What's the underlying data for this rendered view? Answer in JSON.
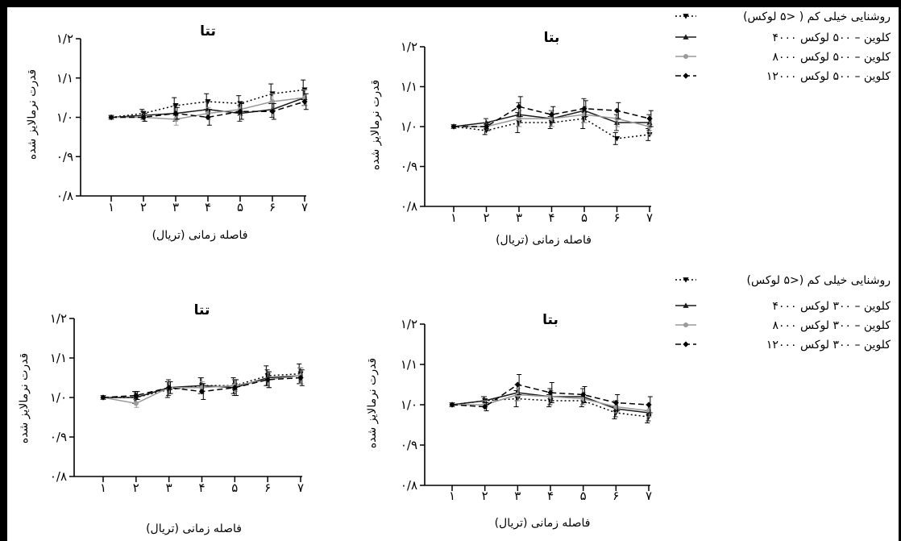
{
  "legends": [
    {
      "entries": [
        {
          "series": "low",
          "label": "روشنایی خیلی کم ( <۵ لوکس)"
        },
        {
          "series": "k4000",
          "label": "۴۰۰۰ کلوین – ۵۰۰ لوکس"
        },
        {
          "series": "k8000",
          "label": "۸۰۰۰ کلوین – ۵۰۰ لوکس"
        },
        {
          "series": "k12000",
          "label": "۱۲۰۰۰ کلوین – ۵۰۰ لوکس"
        }
      ]
    },
    {
      "entries": [
        {
          "series": "low",
          "label": "روشنایی خیلی کم (<۵ لوکس)"
        },
        {
          "series": "k4000",
          "label": "۴۰۰۰ کلوین – ۳۰۰ لوکس"
        },
        {
          "series": "k8000",
          "label": "۸۰۰۰ کلوین – ۳۰۰ لوکس"
        },
        {
          "series": "k12000",
          "label": "۱۲۰۰۰ کلوین – ۳۰۰ لوکس"
        }
      ]
    }
  ],
  "series_styles": {
    "low": {
      "color": "#000000",
      "dash": "2,3",
      "marker": "triangle-down"
    },
    "k4000": {
      "color": "#1a1a1a",
      "dash": "",
      "marker": "triangle-up"
    },
    "k8000": {
      "color": "#9a9a9a",
      "dash": "",
      "marker": "circle"
    },
    "k12000": {
      "color": "#000000",
      "dash": "7,4",
      "marker": "diamond"
    }
  },
  "chart_data": [
    {
      "type": "line",
      "title": "تتا",
      "xlabel": "فاصله زمانی (تریال)",
      "ylabel": "قدرت نرمالایز شده",
      "x": [
        1,
        2,
        3,
        4,
        5,
        6,
        7
      ],
      "x_tick_labels": [
        "۱",
        "۲",
        "۳",
        "۴",
        "۵",
        "۶",
        "۷"
      ],
      "y_tick_values": [
        0.8,
        0.9,
        1.0,
        1.1,
        1.2
      ],
      "y_tick_labels": [
        "۰/۸",
        "۰/۹",
        "۱/۰",
        "۱/۱",
        "۱/۲"
      ],
      "ylim": [
        0.8,
        1.2
      ],
      "series": [
        {
          "key": "low",
          "values": [
            1.0,
            1.01,
            1.03,
            1.04,
            1.035,
            1.06,
            1.07
          ],
          "err": [
            0,
            0.01,
            0.02,
            0.02,
            0.02,
            0.025,
            0.025
          ]
        },
        {
          "key": "k4000",
          "values": [
            1.0,
            1.005,
            1.01,
            1.02,
            1.01,
            1.02,
            1.05
          ],
          "err": [
            0,
            0.01,
            0.02,
            0.02,
            0.02,
            0.02,
            0.02
          ]
        },
        {
          "key": "k8000",
          "values": [
            1.0,
            1.0,
            0.995,
            1.01,
            1.02,
            1.04,
            1.05
          ],
          "err": [
            0,
            0.01,
            0.015,
            0.015,
            0.015,
            0.02,
            0.02
          ]
        },
        {
          "key": "k12000",
          "values": [
            1.0,
            1.0,
            1.01,
            1.0,
            1.015,
            1.015,
            1.04
          ],
          "err": [
            0,
            0.01,
            0.015,
            0.02,
            0.02,
            0.02,
            0.02
          ]
        }
      ]
    },
    {
      "type": "line",
      "title": "بتا",
      "xlabel": "فاصله زمانی (تریال)",
      "ylabel": "قدرت نرمالایز شده",
      "x": [
        1,
        2,
        3,
        4,
        5,
        6,
        7
      ],
      "x_tick_labels": [
        "۱",
        "۲",
        "۳",
        "۴",
        "۵",
        "۶",
        "۷"
      ],
      "y_tick_values": [
        0.8,
        0.9,
        1.0,
        1.1,
        1.2
      ],
      "y_tick_labels": [
        "۰/۸",
        "۰/۹",
        "۱/۰",
        "۱/۱",
        "۱/۲"
      ],
      "ylim": [
        0.8,
        1.2
      ],
      "series": [
        {
          "key": "low",
          "values": [
            1.0,
            0.99,
            1.01,
            1.01,
            1.02,
            0.97,
            0.98
          ],
          "err": [
            0,
            0.01,
            0.025,
            0.015,
            0.025,
            0.015,
            0.015
          ]
        },
        {
          "key": "k4000",
          "values": [
            1.0,
            1.01,
            1.03,
            1.02,
            1.04,
            1.01,
            1.01
          ],
          "err": [
            0,
            0.01,
            0.03,
            0.02,
            0.03,
            0.02,
            0.02
          ]
        },
        {
          "key": "k8000",
          "values": [
            1.0,
            1.0,
            1.02,
            1.02,
            1.03,
            1.02,
            1.0
          ],
          "err": [
            0,
            0.01,
            0.02,
            0.02,
            0.02,
            0.02,
            0.02
          ]
        },
        {
          "key": "k12000",
          "values": [
            1.0,
            1.0,
            1.05,
            1.03,
            1.045,
            1.04,
            1.02
          ],
          "err": [
            0,
            0.01,
            0.025,
            0.02,
            0.02,
            0.02,
            0.02
          ]
        }
      ]
    },
    {
      "type": "line",
      "title": "تتا",
      "xlabel": "فاصله زمانی (تریال)",
      "ylabel": "قدرت نرمالایز شده",
      "x": [
        1,
        2,
        3,
        4,
        5,
        6,
        7
      ],
      "x_tick_labels": [
        "۱",
        "۲",
        "۳",
        "۴",
        "۵",
        "۶",
        "۷"
      ],
      "y_tick_values": [
        0.8,
        0.9,
        1.0,
        1.1,
        1.2
      ],
      "y_tick_labels": [
        "۰/۸",
        "۰/۹",
        "۱/۰",
        "۱/۱",
        "۱/۲"
      ],
      "ylim": [
        0.8,
        1.2
      ],
      "series": [
        {
          "key": "low",
          "values": [
            1.0,
            1.0,
            1.02,
            1.03,
            1.03,
            1.055,
            1.06
          ],
          "err": [
            0,
            0.015,
            0.02,
            0.02,
            0.02,
            0.025,
            0.025
          ]
        },
        {
          "key": "k4000",
          "values": [
            1.0,
            1.0,
            1.025,
            1.03,
            1.025,
            1.05,
            1.055
          ],
          "err": [
            0,
            0.015,
            0.02,
            0.02,
            0.02,
            0.02,
            0.02
          ]
        },
        {
          "key": "k8000",
          "values": [
            1.0,
            0.985,
            1.025,
            1.025,
            1.03,
            1.045,
            1.055
          ],
          "err": [
            0,
            0.01,
            0.015,
            0.015,
            0.015,
            0.02,
            0.02
          ]
        },
        {
          "key": "k12000",
          "values": [
            1.0,
            1.005,
            1.025,
            1.015,
            1.025,
            1.045,
            1.05
          ],
          "err": [
            0,
            0.01,
            0.015,
            0.02,
            0.02,
            0.02,
            0.02
          ]
        }
      ]
    },
    {
      "type": "line",
      "title": "بتا",
      "xlabel": "فاصله زمانی (تریال)",
      "ylabel": "قدرت نرمالایز شده",
      "x": [
        1,
        2,
        3,
        4,
        5,
        6,
        7
      ],
      "x_tick_labels": [
        "۱",
        "۲",
        "۳",
        "۴",
        "۵",
        "۶",
        "۷"
      ],
      "y_tick_values": [
        0.8,
        0.9,
        1.0,
        1.1,
        1.2
      ],
      "y_tick_labels": [
        "۰/۸",
        "۰/۹",
        "۱/۰",
        "۱/۱",
        "۱/۲"
      ],
      "ylim": [
        0.8,
        1.2
      ],
      "series": [
        {
          "key": "low",
          "values": [
            1.0,
            1.01,
            1.015,
            1.01,
            1.01,
            0.98,
            0.97
          ],
          "err": [
            0,
            0.01,
            0.02,
            0.015,
            0.015,
            0.015,
            0.015
          ]
        },
        {
          "key": "k4000",
          "values": [
            1.0,
            1.01,
            1.03,
            1.02,
            1.02,
            0.99,
            0.98
          ],
          "err": [
            0,
            0.01,
            0.02,
            0.02,
            0.02,
            0.02,
            0.02
          ]
        },
        {
          "key": "k8000",
          "values": [
            1.0,
            1.0,
            1.025,
            1.02,
            1.015,
            0.995,
            0.985
          ],
          "err": [
            0,
            0.01,
            0.015,
            0.015,
            0.015,
            0.015,
            0.015
          ]
        },
        {
          "key": "k12000",
          "values": [
            1.0,
            0.995,
            1.05,
            1.03,
            1.025,
            1.005,
            1.0
          ],
          "err": [
            0,
            0.01,
            0.025,
            0.025,
            0.02,
            0.02,
            0.02
          ]
        }
      ]
    }
  ]
}
